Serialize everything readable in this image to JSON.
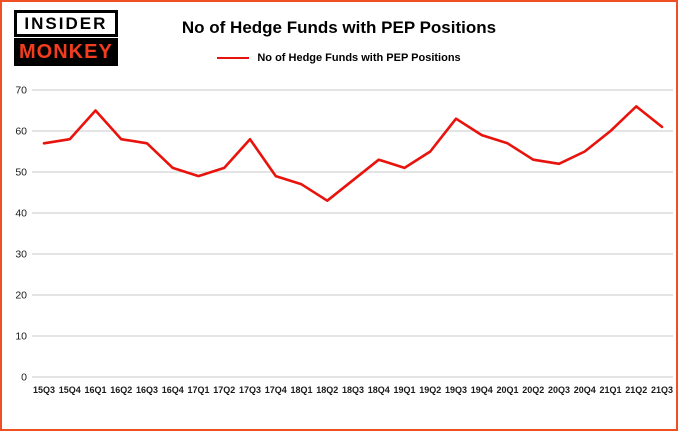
{
  "brand": {
    "line1": "INSIDER",
    "line2": "MONKEY"
  },
  "header": {
    "title": "No of Hedge Funds with PEP Positions"
  },
  "legend": {
    "label": "No of Hedge Funds with PEP Positions"
  },
  "colors": {
    "line": "#e8130c",
    "frame_border": "#f04e23",
    "grid": "#c9c9c9"
  },
  "chart_data": {
    "type": "line",
    "title": "No of Hedge Funds with PEP Positions",
    "categories": [
      "15Q3",
      "15Q4",
      "16Q1",
      "16Q2",
      "16Q3",
      "16Q4",
      "17Q1",
      "17Q2",
      "17Q3",
      "17Q4",
      "18Q1",
      "18Q2",
      "18Q3",
      "18Q4",
      "19Q1",
      "19Q2",
      "19Q3",
      "19Q4",
      "20Q1",
      "20Q2",
      "20Q3",
      "20Q4",
      "21Q1",
      "21Q2",
      "21Q3"
    ],
    "series": [
      {
        "name": "No of Hedge Funds with PEP Positions",
        "color": "#e8130c",
        "values": [
          57,
          58,
          65,
          58,
          57,
          51,
          49,
          51,
          58,
          49,
          47,
          43,
          48,
          53,
          51,
          55,
          63,
          59,
          57,
          53,
          52,
          55,
          60,
          66,
          61
        ]
      }
    ],
    "xlabel": "",
    "ylabel": "",
    "ylim": [
      0,
      70
    ],
    "yticks": [
      0,
      10,
      20,
      30,
      40,
      50,
      60,
      70
    ],
    "grid": true,
    "legend_position": "top"
  }
}
